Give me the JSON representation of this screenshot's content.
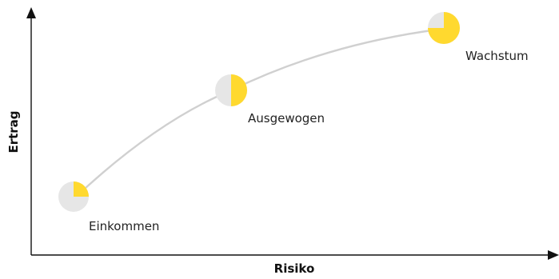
{
  "axes": {
    "x_label": "Risiko",
    "y_label": "Ertrag"
  },
  "profiles": [
    {
      "key": "income",
      "label": "Einkommen",
      "yellow_share": 0.25
    },
    {
      "key": "balanced",
      "label": "Ausgewogen",
      "yellow_share": 0.5
    },
    {
      "key": "growth",
      "label": "Wachstum",
      "yellow_share": 0.75
    }
  ],
  "colors": {
    "axis": "#111111",
    "curve": "#d0d0d0",
    "pie_base": "#e6e6e6",
    "pie_accent": "#ffd92f",
    "text": "#222222"
  }
}
